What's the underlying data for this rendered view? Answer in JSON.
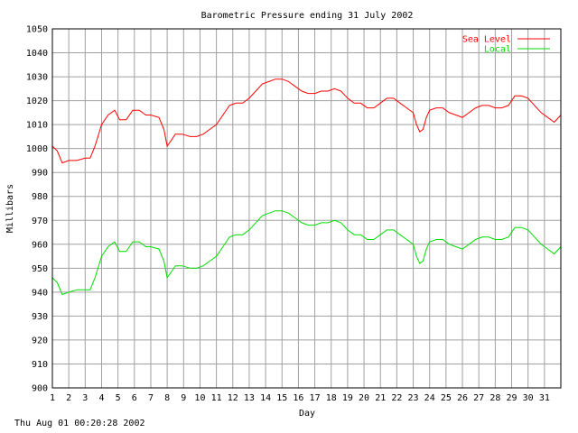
{
  "chart_data": {
    "type": "line",
    "title": "Barometric Pressure ending 31 July 2002",
    "xlabel": "Day",
    "ylabel": "Millibars",
    "xlim": [
      1,
      32
    ],
    "ylim": [
      900,
      1050
    ],
    "yticks": [
      "900",
      "910",
      "920",
      "930",
      "940",
      "950",
      "960",
      "970",
      "980",
      "990",
      "1000",
      "1010",
      "1020",
      "1030",
      "1040",
      "1050"
    ],
    "xticks": [
      "1",
      "2",
      "3",
      "4",
      "5",
      "6",
      "7",
      "8",
      "9",
      "10",
      "11",
      "12",
      "13",
      "14",
      "15",
      "16",
      "17",
      "18",
      "19",
      "20",
      "21",
      "22",
      "23",
      "24",
      "25",
      "26",
      "27",
      "28",
      "29",
      "30",
      "31"
    ],
    "grid": true,
    "legend_position": "top-right",
    "series": [
      {
        "name": "Sea Level",
        "color": "#ff0000",
        "x": [
          1,
          1.3,
          1.6,
          2.0,
          2.5,
          3.0,
          3.3,
          3.6,
          4.0,
          4.4,
          4.8,
          5.1,
          5.5,
          5.9,
          6.3,
          6.7,
          7.0,
          7.5,
          7.8,
          8.0,
          8.2,
          8.5,
          8.9,
          9.4,
          9.8,
          10.2,
          10.6,
          11.0,
          11.4,
          11.8,
          12.2,
          12.6,
          13.0,
          13.4,
          13.8,
          14.2,
          14.6,
          15.0,
          15.4,
          15.8,
          16.2,
          16.6,
          17.0,
          17.4,
          17.8,
          18.2,
          18.6,
          19.0,
          19.4,
          19.8,
          20.2,
          20.6,
          21.0,
          21.4,
          21.8,
          22.2,
          22.6,
          23.0,
          23.2,
          23.4,
          23.6,
          23.8,
          24.0,
          24.4,
          24.8,
          25.2,
          25.6,
          26.0,
          26.4,
          26.8,
          27.2,
          27.6,
          28.0,
          28.4,
          28.8,
          29.2,
          29.6,
          30.0,
          30.4,
          30.8,
          31.2,
          31.6,
          32.0
        ],
        "y": [
          1001,
          999,
          994,
          995,
          995,
          996,
          996,
          1001,
          1010,
          1014,
          1016,
          1012,
          1012,
          1016,
          1016,
          1014,
          1014,
          1013,
          1008,
          1001,
          1003,
          1006,
          1006,
          1005,
          1005,
          1006,
          1008,
          1010,
          1014,
          1018,
          1019,
          1019,
          1021,
          1024,
          1027,
          1028,
          1029,
          1029,
          1028,
          1026,
          1024,
          1023,
          1023,
          1024,
          1024,
          1025,
          1024,
          1021,
          1019,
          1019,
          1017,
          1017,
          1019,
          1021,
          1021,
          1019,
          1017,
          1015,
          1010,
          1007,
          1008,
          1013,
          1016,
          1017,
          1017,
          1015,
          1014,
          1013,
          1015,
          1017,
          1018,
          1018,
          1017,
          1017,
          1018,
          1022,
          1022,
          1021,
          1018,
          1015,
          1013,
          1011,
          1014
        ]
      },
      {
        "name": "Local",
        "color": "#00dd00",
        "x": [
          1,
          1.3,
          1.6,
          2.0,
          2.5,
          3.0,
          3.3,
          3.6,
          4.0,
          4.4,
          4.8,
          5.1,
          5.5,
          5.9,
          6.3,
          6.7,
          7.0,
          7.5,
          7.8,
          8.0,
          8.2,
          8.5,
          8.9,
          9.4,
          9.8,
          10.2,
          10.6,
          11.0,
          11.4,
          11.8,
          12.2,
          12.6,
          13.0,
          13.4,
          13.8,
          14.2,
          14.6,
          15.0,
          15.4,
          15.8,
          16.2,
          16.6,
          17.0,
          17.4,
          17.8,
          18.2,
          18.6,
          19.0,
          19.4,
          19.8,
          20.2,
          20.6,
          21.0,
          21.4,
          21.8,
          22.2,
          22.6,
          23.0,
          23.2,
          23.4,
          23.6,
          23.8,
          24.0,
          24.4,
          24.8,
          25.2,
          25.6,
          26.0,
          26.4,
          26.8,
          27.2,
          27.6,
          28.0,
          28.4,
          28.8,
          29.2,
          29.6,
          30.0,
          30.4,
          30.8,
          31.2,
          31.6,
          32.0
        ],
        "y": [
          946,
          944,
          939,
          940,
          941,
          941,
          941,
          946,
          955,
          959,
          961,
          957,
          957,
          961,
          961,
          959,
          959,
          958,
          953,
          946,
          948,
          951,
          951,
          950,
          950,
          951,
          953,
          955,
          959,
          963,
          964,
          964,
          966,
          969,
          972,
          973,
          974,
          974,
          973,
          971,
          969,
          968,
          968,
          969,
          969,
          970,
          969,
          966,
          964,
          964,
          962,
          962,
          964,
          966,
          966,
          964,
          962,
          960,
          955,
          952,
          953,
          958,
          961,
          962,
          962,
          960,
          959,
          958,
          960,
          962,
          963,
          963,
          962,
          962,
          963,
          967,
          967,
          966,
          963,
          960,
          958,
          956,
          959
        ]
      }
    ]
  },
  "footer": {
    "timestamp": "Thu Aug 01 00:20:28 2002"
  }
}
